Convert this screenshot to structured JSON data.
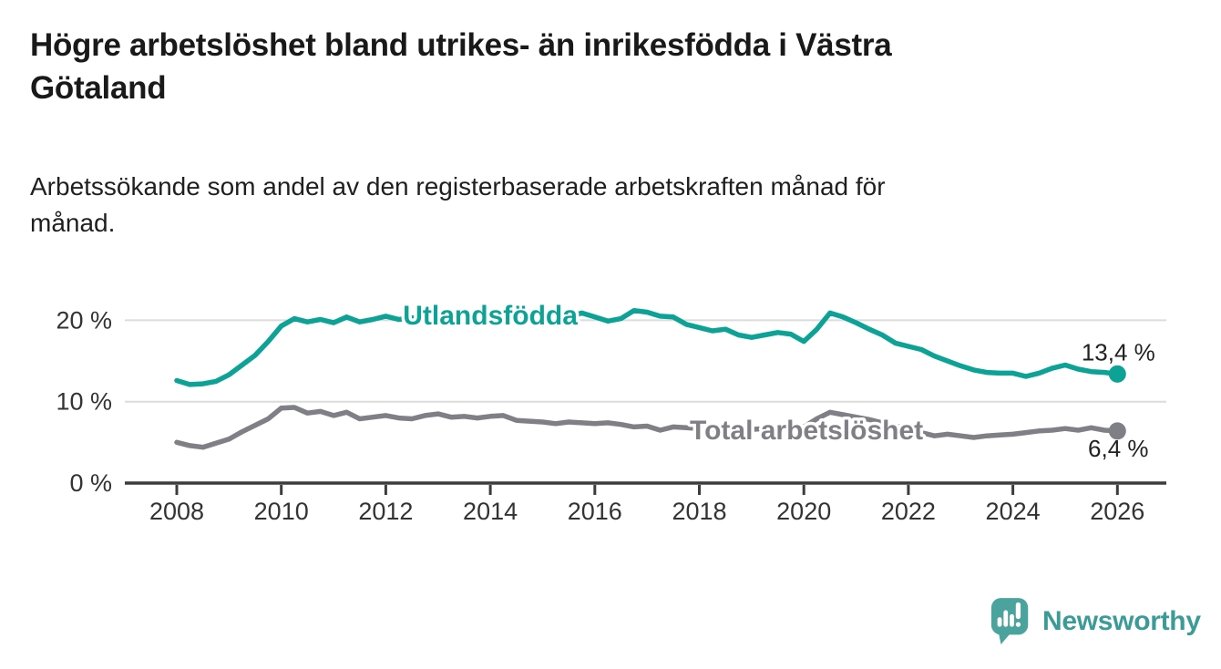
{
  "header": {
    "title": "Högre arbetslöshet bland utrikes- än inrikesfödda i Västra\nGötaland",
    "subtitle": "Arbetssökande som andel av den registerbaserade arbetskraften månad för\nmånad."
  },
  "footer": {
    "brand": "Newsworthy",
    "logo_icon": "bar-chart-speech-bubble-icon"
  },
  "colors": {
    "foreign_born_line": "#0ca296",
    "total_line": "#7f7f86",
    "axis": "#3c3c3c",
    "grid": "#dcdcdc",
    "tick_text": "#333333",
    "annotation_text": "#222222",
    "brand_text": "#3a9b97",
    "logo_bubble": "#4ba39e"
  },
  "chart_data": {
    "type": "line",
    "title": "Högre arbetslöshet bland utrikes- än inrikesfödda i Västra Götaland",
    "subtitle": "Arbetssökande som andel av den registerbaserade arbetskraften månad för månad.",
    "unit": "%",
    "xlim": [
      2007.0,
      2027.0
    ],
    "ylim": [
      0,
      22.5
    ],
    "grid": "horizontal",
    "legend_position": "inline-labels",
    "x_axis": {
      "ticks": [
        {
          "year": 2008,
          "label": "2008"
        },
        {
          "year": 2010,
          "label": "2010"
        },
        {
          "year": 2012,
          "label": "2012"
        },
        {
          "year": 2014,
          "label": "2014"
        },
        {
          "year": 2016,
          "label": "2016"
        },
        {
          "year": 2018,
          "label": "2018"
        },
        {
          "year": 2020,
          "label": "2020"
        },
        {
          "year": 2022,
          "label": "2022"
        },
        {
          "year": 2024,
          "label": "2024"
        },
        {
          "year": 2026,
          "label": "2026"
        }
      ]
    },
    "y_axis": {
      "ticks": [
        {
          "value": 0,
          "label": "0 %"
        },
        {
          "value": 10,
          "label": "10 %"
        },
        {
          "value": 20,
          "label": "20 %"
        }
      ]
    },
    "series": [
      {
        "name": "Utlandsfödda",
        "color": "#0ca296",
        "end_label": "13,4 %",
        "end_value": 13.4,
        "end_label_position": "above",
        "label_anchor": {
          "year": 2014.0,
          "value": 20.6
        },
        "points": [
          [
            2008.0,
            12.6
          ],
          [
            2008.25,
            12.1
          ],
          [
            2008.5,
            12.2
          ],
          [
            2008.75,
            12.5
          ],
          [
            2009.0,
            13.3
          ],
          [
            2009.25,
            14.5
          ],
          [
            2009.5,
            15.7
          ],
          [
            2009.75,
            17.4
          ],
          [
            2010.0,
            19.3
          ],
          [
            2010.25,
            20.2
          ],
          [
            2010.5,
            19.8
          ],
          [
            2010.75,
            20.1
          ],
          [
            2011.0,
            19.7
          ],
          [
            2011.25,
            20.4
          ],
          [
            2011.5,
            19.8
          ],
          [
            2011.75,
            20.1
          ],
          [
            2012.0,
            20.5
          ],
          [
            2012.25,
            20.1
          ],
          [
            2012.5,
            20.3
          ],
          [
            2012.75,
            20.0
          ],
          [
            2013.0,
            20.3
          ],
          [
            2013.25,
            20.1
          ],
          [
            2013.5,
            19.9
          ],
          [
            2013.75,
            20.2
          ],
          [
            2014.0,
            20.4
          ],
          [
            2014.25,
            20.2
          ],
          [
            2014.5,
            20.0
          ],
          [
            2014.75,
            20.3
          ],
          [
            2015.0,
            20.4
          ],
          [
            2015.25,
            20.1
          ],
          [
            2015.5,
            20.4
          ],
          [
            2015.75,
            20.9
          ],
          [
            2016.0,
            20.4
          ],
          [
            2016.25,
            19.9
          ],
          [
            2016.5,
            20.2
          ],
          [
            2016.75,
            21.2
          ],
          [
            2017.0,
            21.0
          ],
          [
            2017.25,
            20.5
          ],
          [
            2017.5,
            20.4
          ],
          [
            2017.75,
            19.5
          ],
          [
            2018.0,
            19.1
          ],
          [
            2018.25,
            18.7
          ],
          [
            2018.5,
            18.9
          ],
          [
            2018.75,
            18.2
          ],
          [
            2019.0,
            17.9
          ],
          [
            2019.25,
            18.2
          ],
          [
            2019.5,
            18.5
          ],
          [
            2019.75,
            18.3
          ],
          [
            2020.0,
            17.4
          ],
          [
            2020.25,
            18.9
          ],
          [
            2020.5,
            20.9
          ],
          [
            2020.75,
            20.4
          ],
          [
            2021.0,
            19.7
          ],
          [
            2021.25,
            18.9
          ],
          [
            2021.5,
            18.2
          ],
          [
            2021.75,
            17.2
          ],
          [
            2022.0,
            16.8
          ],
          [
            2022.25,
            16.4
          ],
          [
            2022.5,
            15.6
          ],
          [
            2022.75,
            15.0
          ],
          [
            2023.0,
            14.4
          ],
          [
            2023.25,
            13.9
          ],
          [
            2023.5,
            13.6
          ],
          [
            2023.75,
            13.5
          ],
          [
            2024.0,
            13.5
          ],
          [
            2024.25,
            13.1
          ],
          [
            2024.5,
            13.5
          ],
          [
            2024.75,
            14.1
          ],
          [
            2025.0,
            14.5
          ],
          [
            2025.25,
            14.0
          ],
          [
            2025.5,
            13.7
          ],
          [
            2025.75,
            13.6
          ],
          [
            2026.0,
            13.4
          ]
        ]
      },
      {
        "name": "Total arbetslöshet",
        "color": "#7f7f86",
        "end_label": "6,4 %",
        "end_value": 6.4,
        "end_label_position": "below",
        "label_anchor": {
          "year": 2020.05,
          "value": 6.5
        },
        "points": [
          [
            2008.0,
            5.0
          ],
          [
            2008.25,
            4.6
          ],
          [
            2008.5,
            4.4
          ],
          [
            2008.75,
            4.9
          ],
          [
            2009.0,
            5.4
          ],
          [
            2009.25,
            6.3
          ],
          [
            2009.5,
            7.1
          ],
          [
            2009.75,
            7.9
          ],
          [
            2010.0,
            9.2
          ],
          [
            2010.25,
            9.3
          ],
          [
            2010.5,
            8.6
          ],
          [
            2010.75,
            8.8
          ],
          [
            2011.0,
            8.3
          ],
          [
            2011.25,
            8.7
          ],
          [
            2011.5,
            7.9
          ],
          [
            2011.75,
            8.1
          ],
          [
            2012.0,
            8.3
          ],
          [
            2012.25,
            8.0
          ],
          [
            2012.5,
            7.9
          ],
          [
            2012.75,
            8.3
          ],
          [
            2013.0,
            8.5
          ],
          [
            2013.25,
            8.1
          ],
          [
            2013.5,
            8.2
          ],
          [
            2013.75,
            8.0
          ],
          [
            2014.0,
            8.2
          ],
          [
            2014.25,
            8.3
          ],
          [
            2014.5,
            7.7
          ],
          [
            2014.75,
            7.6
          ],
          [
            2015.0,
            7.5
          ],
          [
            2015.25,
            7.3
          ],
          [
            2015.5,
            7.5
          ],
          [
            2015.75,
            7.4
          ],
          [
            2016.0,
            7.3
          ],
          [
            2016.25,
            7.4
          ],
          [
            2016.5,
            7.2
          ],
          [
            2016.75,
            6.9
          ],
          [
            2017.0,
            7.0
          ],
          [
            2017.25,
            6.5
          ],
          [
            2017.5,
            6.9
          ],
          [
            2017.75,
            6.8
          ],
          [
            2018.0,
            6.7
          ],
          [
            2018.25,
            6.6
          ],
          [
            2018.5,
            6.7
          ],
          [
            2018.75,
            6.6
          ],
          [
            2019.0,
            6.6
          ],
          [
            2019.25,
            6.7
          ],
          [
            2019.5,
            6.8
          ],
          [
            2019.75,
            6.8
          ],
          [
            2020.0,
            6.9
          ],
          [
            2020.25,
            7.9
          ],
          [
            2020.5,
            8.7
          ],
          [
            2020.75,
            8.4
          ],
          [
            2021.0,
            8.1
          ],
          [
            2021.25,
            7.8
          ],
          [
            2021.5,
            7.4
          ],
          [
            2021.75,
            7.0
          ],
          [
            2022.0,
            6.7
          ],
          [
            2022.25,
            6.2
          ],
          [
            2022.5,
            5.8
          ],
          [
            2022.75,
            6.0
          ],
          [
            2023.0,
            5.8
          ],
          [
            2023.25,
            5.6
          ],
          [
            2023.5,
            5.8
          ],
          [
            2023.75,
            5.9
          ],
          [
            2024.0,
            6.0
          ],
          [
            2024.25,
            6.2
          ],
          [
            2024.5,
            6.4
          ],
          [
            2024.75,
            6.5
          ],
          [
            2025.0,
            6.7
          ],
          [
            2025.25,
            6.5
          ],
          [
            2025.5,
            6.8
          ],
          [
            2025.75,
            6.5
          ],
          [
            2026.0,
            6.4
          ]
        ]
      }
    ]
  }
}
